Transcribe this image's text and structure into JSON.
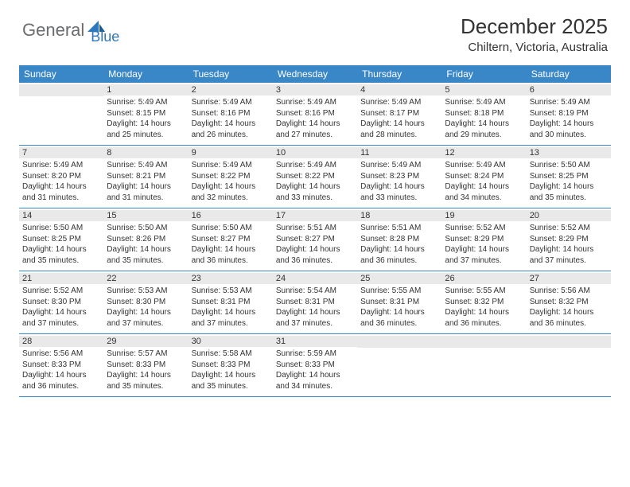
{
  "logo": {
    "general": "General",
    "blue": "Blue"
  },
  "title": "December 2025",
  "location": "Chiltern, Victoria, Australia",
  "colors": {
    "header_bg": "#3a87c8",
    "header_text": "#ffffff",
    "daynum_bg": "#e9e9e9",
    "border": "#3a87c8",
    "text": "#333333",
    "logo_gray": "#6a6c6e",
    "logo_blue": "#2d78bd",
    "background": "#ffffff"
  },
  "day_names": [
    "Sunday",
    "Monday",
    "Tuesday",
    "Wednesday",
    "Thursday",
    "Friday",
    "Saturday"
  ],
  "weeks": [
    [
      null,
      {
        "n": "1",
        "sr": "Sunrise: 5:49 AM",
        "ss": "Sunset: 8:15 PM",
        "dl": "Daylight: 14 hours and 25 minutes."
      },
      {
        "n": "2",
        "sr": "Sunrise: 5:49 AM",
        "ss": "Sunset: 8:16 PM",
        "dl": "Daylight: 14 hours and 26 minutes."
      },
      {
        "n": "3",
        "sr": "Sunrise: 5:49 AM",
        "ss": "Sunset: 8:16 PM",
        "dl": "Daylight: 14 hours and 27 minutes."
      },
      {
        "n": "4",
        "sr": "Sunrise: 5:49 AM",
        "ss": "Sunset: 8:17 PM",
        "dl": "Daylight: 14 hours and 28 minutes."
      },
      {
        "n": "5",
        "sr": "Sunrise: 5:49 AM",
        "ss": "Sunset: 8:18 PM",
        "dl": "Daylight: 14 hours and 29 minutes."
      },
      {
        "n": "6",
        "sr": "Sunrise: 5:49 AM",
        "ss": "Sunset: 8:19 PM",
        "dl": "Daylight: 14 hours and 30 minutes."
      }
    ],
    [
      {
        "n": "7",
        "sr": "Sunrise: 5:49 AM",
        "ss": "Sunset: 8:20 PM",
        "dl": "Daylight: 14 hours and 31 minutes."
      },
      {
        "n": "8",
        "sr": "Sunrise: 5:49 AM",
        "ss": "Sunset: 8:21 PM",
        "dl": "Daylight: 14 hours and 31 minutes."
      },
      {
        "n": "9",
        "sr": "Sunrise: 5:49 AM",
        "ss": "Sunset: 8:22 PM",
        "dl": "Daylight: 14 hours and 32 minutes."
      },
      {
        "n": "10",
        "sr": "Sunrise: 5:49 AM",
        "ss": "Sunset: 8:22 PM",
        "dl": "Daylight: 14 hours and 33 minutes."
      },
      {
        "n": "11",
        "sr": "Sunrise: 5:49 AM",
        "ss": "Sunset: 8:23 PM",
        "dl": "Daylight: 14 hours and 33 minutes."
      },
      {
        "n": "12",
        "sr": "Sunrise: 5:49 AM",
        "ss": "Sunset: 8:24 PM",
        "dl": "Daylight: 14 hours and 34 minutes."
      },
      {
        "n": "13",
        "sr": "Sunrise: 5:50 AM",
        "ss": "Sunset: 8:25 PM",
        "dl": "Daylight: 14 hours and 35 minutes."
      }
    ],
    [
      {
        "n": "14",
        "sr": "Sunrise: 5:50 AM",
        "ss": "Sunset: 8:25 PM",
        "dl": "Daylight: 14 hours and 35 minutes."
      },
      {
        "n": "15",
        "sr": "Sunrise: 5:50 AM",
        "ss": "Sunset: 8:26 PM",
        "dl": "Daylight: 14 hours and 35 minutes."
      },
      {
        "n": "16",
        "sr": "Sunrise: 5:50 AM",
        "ss": "Sunset: 8:27 PM",
        "dl": "Daylight: 14 hours and 36 minutes."
      },
      {
        "n": "17",
        "sr": "Sunrise: 5:51 AM",
        "ss": "Sunset: 8:27 PM",
        "dl": "Daylight: 14 hours and 36 minutes."
      },
      {
        "n": "18",
        "sr": "Sunrise: 5:51 AM",
        "ss": "Sunset: 8:28 PM",
        "dl": "Daylight: 14 hours and 36 minutes."
      },
      {
        "n": "19",
        "sr": "Sunrise: 5:52 AM",
        "ss": "Sunset: 8:29 PM",
        "dl": "Daylight: 14 hours and 37 minutes."
      },
      {
        "n": "20",
        "sr": "Sunrise: 5:52 AM",
        "ss": "Sunset: 8:29 PM",
        "dl": "Daylight: 14 hours and 37 minutes."
      }
    ],
    [
      {
        "n": "21",
        "sr": "Sunrise: 5:52 AM",
        "ss": "Sunset: 8:30 PM",
        "dl": "Daylight: 14 hours and 37 minutes."
      },
      {
        "n": "22",
        "sr": "Sunrise: 5:53 AM",
        "ss": "Sunset: 8:30 PM",
        "dl": "Daylight: 14 hours and 37 minutes."
      },
      {
        "n": "23",
        "sr": "Sunrise: 5:53 AM",
        "ss": "Sunset: 8:31 PM",
        "dl": "Daylight: 14 hours and 37 minutes."
      },
      {
        "n": "24",
        "sr": "Sunrise: 5:54 AM",
        "ss": "Sunset: 8:31 PM",
        "dl": "Daylight: 14 hours and 37 minutes."
      },
      {
        "n": "25",
        "sr": "Sunrise: 5:55 AM",
        "ss": "Sunset: 8:31 PM",
        "dl": "Daylight: 14 hours and 36 minutes."
      },
      {
        "n": "26",
        "sr": "Sunrise: 5:55 AM",
        "ss": "Sunset: 8:32 PM",
        "dl": "Daylight: 14 hours and 36 minutes."
      },
      {
        "n": "27",
        "sr": "Sunrise: 5:56 AM",
        "ss": "Sunset: 8:32 PM",
        "dl": "Daylight: 14 hours and 36 minutes."
      }
    ],
    [
      {
        "n": "28",
        "sr": "Sunrise: 5:56 AM",
        "ss": "Sunset: 8:33 PM",
        "dl": "Daylight: 14 hours and 36 minutes."
      },
      {
        "n": "29",
        "sr": "Sunrise: 5:57 AM",
        "ss": "Sunset: 8:33 PM",
        "dl": "Daylight: 14 hours and 35 minutes."
      },
      {
        "n": "30",
        "sr": "Sunrise: 5:58 AM",
        "ss": "Sunset: 8:33 PM",
        "dl": "Daylight: 14 hours and 35 minutes."
      },
      {
        "n": "31",
        "sr": "Sunrise: 5:59 AM",
        "ss": "Sunset: 8:33 PM",
        "dl": "Daylight: 14 hours and 34 minutes."
      },
      null,
      null,
      null
    ]
  ]
}
